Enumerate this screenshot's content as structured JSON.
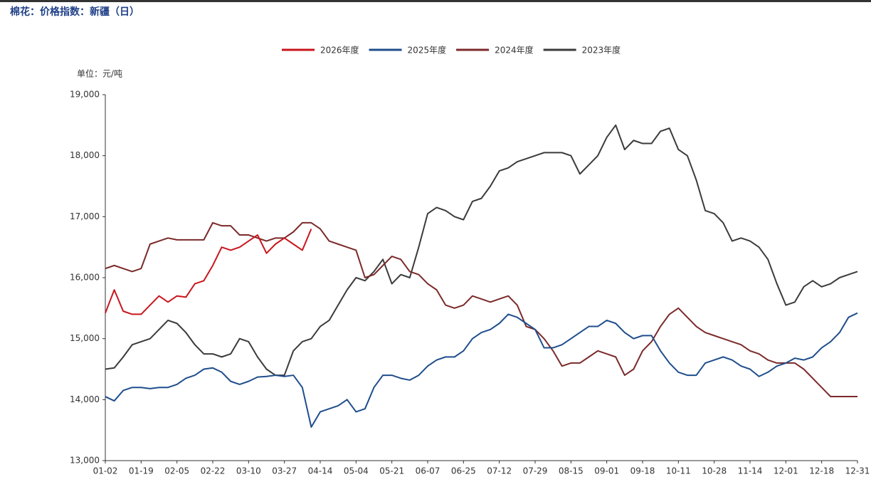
{
  "chart_data": {
    "type": "line",
    "title": "棉花：价格指数：新疆（日）",
    "unit_label": "单位：元/吨",
    "categories": [
      "01-02",
      null,
      null,
      null,
      "01-19",
      null,
      null,
      null,
      "02-05",
      null,
      null,
      null,
      "02-22",
      null,
      null,
      null,
      "03-10",
      null,
      null,
      null,
      "03-27",
      null,
      null,
      null,
      "04-14",
      null,
      null,
      null,
      "05-04",
      null,
      null,
      null,
      "05-21",
      null,
      null,
      null,
      "06-07",
      null,
      null,
      null,
      "06-25",
      null,
      null,
      null,
      "07-12",
      null,
      null,
      null,
      "07-29",
      null,
      null,
      null,
      "08-15",
      null,
      null,
      null,
      "09-01",
      null,
      null,
      null,
      "09-18",
      null,
      null,
      null,
      "10-11",
      null,
      null,
      null,
      "10-28",
      null,
      null,
      null,
      "11-14",
      null,
      null,
      null,
      "12-01",
      null,
      null,
      null,
      "12-18",
      null,
      null,
      null,
      "12-31"
    ],
    "series": [
      {
        "name": "2026年度",
        "color": "#c8161d",
        "values": [
          15420,
          15800,
          15450,
          15400,
          15400,
          15550,
          15700,
          15600,
          15700,
          15680,
          15900,
          15950,
          16200,
          16500,
          16450,
          16500,
          16600,
          16700,
          16400,
          16550,
          16650,
          16550,
          16450,
          16800,
          null,
          null,
          null,
          null,
          null,
          null,
          null,
          null,
          null,
          null,
          null,
          null,
          null,
          null,
          null,
          null,
          null,
          null,
          null,
          null,
          null,
          null,
          null,
          null,
          null,
          null,
          null,
          null,
          null,
          null,
          null,
          null,
          null,
          null,
          null,
          null,
          null,
          null,
          null,
          null,
          null,
          null,
          null,
          null,
          null,
          null,
          null,
          null,
          null,
          null,
          null,
          null,
          null,
          null,
          null,
          null,
          null,
          null,
          null,
          null,
          null
        ]
      },
      {
        "name": "2025年度",
        "color": "#1f4e8c",
        "values": [
          14050,
          13980,
          14150,
          14200,
          14200,
          14180,
          14200,
          14200,
          14250,
          14350,
          14400,
          14500,
          14520,
          14450,
          14300,
          14250,
          14300,
          14370,
          14380,
          14400,
          14380,
          14400,
          14200,
          13550,
          13800,
          13850,
          13900,
          14000,
          13800,
          13850,
          14200,
          14400,
          14400,
          14350,
          14320,
          14400,
          14550,
          14650,
          14700,
          14700,
          14800,
          15000,
          15100,
          15150,
          15250,
          15400,
          15350,
          15250,
          15150,
          14850,
          14850,
          14900,
          15000,
          15100,
          15200,
          15200,
          15300,
          15250,
          15100,
          15000,
          15050,
          15050,
          14800,
          14600,
          14450,
          14400,
          14400,
          14600,
          14650,
          14700,
          14650,
          14550,
          14500,
          14380,
          14450,
          14550,
          14600,
          14680,
          14650,
          14700,
          14850,
          14950,
          15100,
          15350,
          15420
        ]
      },
      {
        "name": "2024年度",
        "color": "#7b2a2a",
        "values": [
          16150,
          16200,
          16150,
          16100,
          16150,
          16550,
          16600,
          16650,
          16620,
          16620,
          16620,
          16620,
          16900,
          16850,
          16850,
          16700,
          16700,
          16650,
          16600,
          16650,
          16650,
          16750,
          16900,
          16900,
          16800,
          16600,
          16550,
          16500,
          16450,
          16000,
          16050,
          16200,
          16350,
          16300,
          16100,
          16050,
          15900,
          15800,
          15550,
          15500,
          15550,
          15700,
          15650,
          15600,
          15650,
          15700,
          15550,
          15200,
          15150,
          15000,
          14800,
          14550,
          14600,
          14600,
          14700,
          14800,
          14750,
          14700,
          14400,
          14500,
          14800,
          14950,
          15200,
          15400,
          15500,
          15350,
          15200,
          15100,
          15050,
          15000,
          14950,
          14900,
          14800,
          14750,
          14650,
          14600,
          14600,
          14600,
          14500,
          14350,
          14200,
          14050,
          14050,
          14050,
          14050
        ]
      },
      {
        "name": "2023年度",
        "color": "#3b3b3b",
        "values": [
          14500,
          14520,
          14700,
          14900,
          14950,
          15000,
          15150,
          15300,
          15250,
          15100,
          14900,
          14750,
          14750,
          14700,
          14750,
          15000,
          14950,
          14700,
          14500,
          14400,
          14400,
          14800,
          14950,
          15000,
          15200,
          15300,
          15550,
          15800,
          16000,
          15950,
          16100,
          16300,
          15900,
          16050,
          16000,
          16500,
          17050,
          17150,
          17100,
          17000,
          16950,
          17250,
          17300,
          17500,
          17750,
          17800,
          17900,
          17950,
          18000,
          18050,
          18050,
          18050,
          18000,
          17700,
          17850,
          18000,
          18300,
          18500,
          18100,
          18250,
          18200,
          18200,
          18400,
          18450,
          18100,
          18000,
          17600,
          17100,
          17050,
          16900,
          16600,
          16650,
          16600,
          16500,
          16300,
          15900,
          15550,
          15600,
          15850,
          15950,
          15850,
          15900,
          16000,
          16050,
          16100
        ]
      }
    ],
    "ylim": [
      13000,
      19000
    ],
    "yticks": [
      {
        "value": 13000,
        "label": "13,000"
      },
      {
        "value": 14000,
        "label": "14,000"
      },
      {
        "value": 15000,
        "label": "15,000"
      },
      {
        "value": 16000,
        "label": "16,000"
      },
      {
        "value": 17000,
        "label": "17,000"
      },
      {
        "value": 18000,
        "label": "18,000"
      },
      {
        "value": 19000,
        "label": "19,000"
      }
    ],
    "grid": false,
    "legend": "top"
  }
}
